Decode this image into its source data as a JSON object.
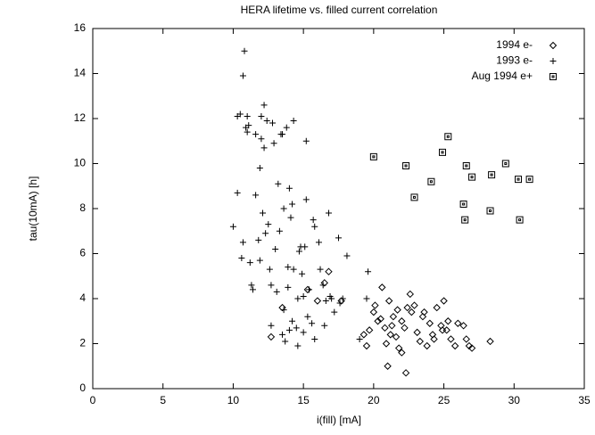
{
  "chart_data": {
    "type": "scatter",
    "title": "HERA lifetime vs. filled current correlation",
    "x_label": "i(fill) [mA]",
    "y_label": "tau(10mA) [h]",
    "xlim": [
      0,
      35
    ],
    "ylim": [
      0,
      16
    ],
    "xticks": [
      0,
      5,
      10,
      15,
      20,
      25,
      30,
      35
    ],
    "yticks": [
      0,
      2,
      4,
      6,
      8,
      10,
      12,
      14,
      16
    ],
    "legend": "top-right",
    "color": "#000000",
    "series": [
      {
        "name": "1994 e-",
        "marker": "diamond",
        "x": [
          12.7,
          13.5,
          15.3,
          16.0,
          16.8,
          16.5,
          17.7,
          20.0,
          20.3,
          20.6,
          20.8,
          21.1,
          21.3,
          21.4,
          21.6,
          21.8,
          22.0,
          22.2,
          22.3,
          22.6,
          22.7,
          22.9,
          23.1,
          23.3,
          23.5,
          23.8,
          24.0,
          24.2,
          24.5,
          24.8,
          25.0,
          25.2,
          25.5,
          26.0,
          26.4,
          26.6,
          26.8,
          27.0,
          28.3,
          19.3,
          19.7,
          19.5,
          20.1,
          21.0,
          22.4,
          24.9,
          25.3,
          23.6,
          21.7,
          20.5,
          22.0,
          24.3,
          25.8,
          21.2,
          20.9
        ],
        "values": [
          2.3,
          3.6,
          4.4,
          3.9,
          5.2,
          4.7,
          3.9,
          3.4,
          3.0,
          4.5,
          2.7,
          3.9,
          2.8,
          3.2,
          2.3,
          1.8,
          1.6,
          2.7,
          0.7,
          4.2,
          3.4,
          3.7,
          2.5,
          2.1,
          3.2,
          1.9,
          2.9,
          2.4,
          3.6,
          2.8,
          3.9,
          2.6,
          2.2,
          2.9,
          2.8,
          2.2,
          1.9,
          1.8,
          2.1,
          2.4,
          2.6,
          1.9,
          3.7,
          1.0,
          3.6,
          2.6,
          3.0,
          3.4,
          3.5,
          3.1,
          3.0,
          2.2,
          1.9,
          2.4,
          2.0
        ]
      },
      {
        "name": "1993 e-",
        "marker": "plus",
        "x": [
          10.0,
          10.3,
          10.3,
          10.5,
          10.6,
          10.7,
          10.7,
          10.8,
          10.9,
          11.0,
          11.0,
          11.1,
          11.2,
          11.3,
          11.4,
          11.6,
          11.6,
          11.8,
          11.9,
          11.9,
          12.0,
          12.0,
          12.1,
          12.2,
          12.2,
          12.3,
          12.4,
          12.5,
          12.6,
          12.7,
          12.7,
          12.8,
          12.9,
          13.0,
          13.1,
          13.2,
          13.3,
          13.4,
          13.5,
          13.5,
          13.6,
          13.6,
          13.7,
          13.8,
          13.9,
          13.9,
          14.0,
          14.1,
          14.2,
          14.2,
          14.3,
          14.3,
          14.5,
          14.6,
          14.6,
          14.7,
          14.8,
          14.9,
          15.0,
          15.1,
          15.2,
          15.2,
          15.3,
          15.4,
          15.6,
          15.7,
          15.8,
          15.8,
          16.1,
          16.2,
          16.4,
          16.6,
          16.8,
          17.0,
          17.2,
          17.5,
          17.6,
          17.8,
          18.1,
          19.0,
          19.5,
          19.6,
          16.9,
          16.5,
          15.0,
          14.0
        ],
        "values": [
          7.2,
          8.7,
          12.1,
          12.2,
          5.8,
          6.5,
          13.9,
          15.0,
          11.6,
          12.1,
          11.4,
          11.7,
          5.6,
          4.6,
          4.4,
          8.6,
          11.3,
          6.6,
          5.7,
          9.8,
          12.1,
          11.1,
          7.8,
          10.7,
          12.6,
          6.9,
          11.9,
          7.3,
          5.3,
          4.6,
          2.8,
          11.8,
          10.9,
          6.2,
          4.3,
          9.1,
          7.0,
          11.3,
          11.3,
          2.4,
          3.5,
          8.0,
          2.1,
          11.6,
          5.4,
          4.5,
          8.9,
          7.6,
          8.2,
          3.0,
          11.9,
          5.3,
          2.7,
          1.9,
          4.0,
          6.1,
          6.3,
          5.1,
          4.1,
          6.3,
          11.0,
          8.4,
          3.2,
          4.4,
          2.9,
          7.5,
          7.2,
          2.2,
          6.5,
          5.3,
          4.6,
          3.9,
          7.8,
          4.0,
          3.4,
          6.7,
          3.8,
          4.0,
          5.9,
          2.2,
          4.0,
          5.2,
          4.1,
          2.8,
          2.5,
          2.6
        ]
      },
      {
        "name": "Aug 1994 e+",
        "marker": "square",
        "x": [
          20.0,
          22.3,
          22.9,
          24.1,
          24.9,
          25.3,
          26.6,
          27.0,
          26.4,
          26.5,
          28.4,
          29.4,
          30.3,
          28.3,
          31.1,
          30.4
        ],
        "values": [
          10.3,
          9.9,
          8.5,
          9.2,
          10.5,
          11.2,
          9.9,
          9.4,
          8.2,
          7.5,
          9.5,
          10.0,
          9.3,
          7.9,
          9.3,
          7.5
        ]
      }
    ]
  }
}
